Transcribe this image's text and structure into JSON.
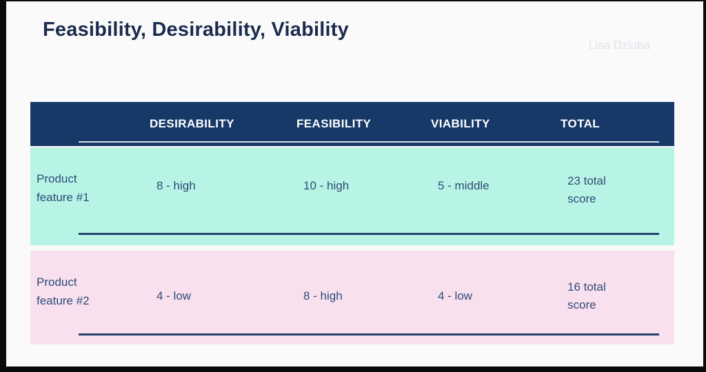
{
  "slide": {
    "title": "Feasibility, Desirability, Viability",
    "watermark": "Lisa Dziuba"
  },
  "table": {
    "headers": {
      "desirability": "DESIRABILITY",
      "feasibility": "FEASIBILITY",
      "viability": "VIABILITY",
      "total": "TOTAL"
    },
    "rows": [
      {
        "label": "Product feature #1",
        "desirability": "8 - high",
        "feasibility": "10 - high",
        "viability": "5 - middle",
        "total": "23 total score"
      },
      {
        "label": "Product feature #2",
        "desirability": "4 - low",
        "feasibility": "8 - high",
        "viability": "4 - low",
        "total": "16 total score"
      }
    ]
  },
  "chart_data": {
    "type": "table",
    "title": "Feasibility, Desirability, Viability",
    "columns": [
      "",
      "DESIRABILITY",
      "FEASIBILITY",
      "VIABILITY",
      "TOTAL"
    ],
    "rows": [
      [
        "Product feature #1",
        "8 - high",
        "10 - high",
        "5 - middle",
        "23 total score"
      ],
      [
        "Product feature #2",
        "4 - low",
        "8 - high",
        "4 - low",
        "16 total score"
      ]
    ],
    "scores": [
      {
        "feature": "Product feature #1",
        "desirability": 8,
        "feasibility": 10,
        "viability": 5,
        "total": 23
      },
      {
        "feature": "Product feature #2",
        "desirability": 4,
        "feasibility": 8,
        "viability": 4,
        "total": 16
      }
    ]
  },
  "colors": {
    "background": "#fafafa",
    "frame": "#0a0a0a",
    "header_bg": "#173968",
    "header_text": "#ffffff",
    "row1_bg": "#b8f4e6",
    "row2_bg": "#f9e0ef",
    "title_text": "#1b2b4d",
    "cell_text": "#2d4b76",
    "underline_navy": "#25426f",
    "underline_light": "#d8dbe2",
    "watermark_text": "#e6e0ea"
  }
}
